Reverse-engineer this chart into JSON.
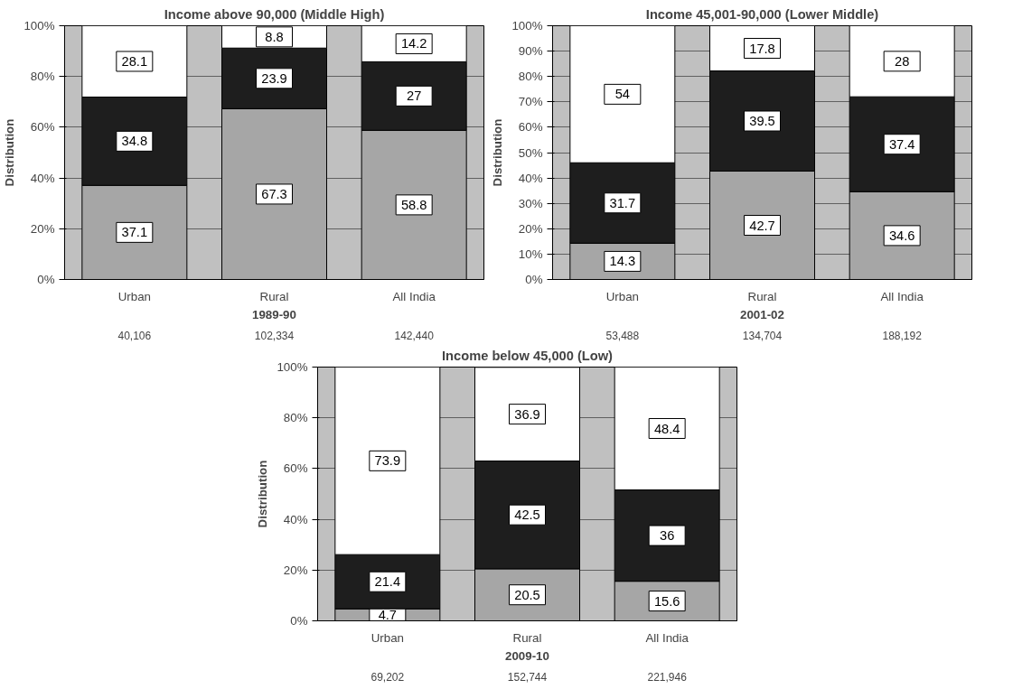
{
  "chart_data": [
    {
      "type": "bar",
      "stacked": true,
      "title": "Income above 90,000 (Middle High)",
      "ylabel": "Distribution",
      "xlabel": "1989-90",
      "categories": [
        "Urban",
        "Rural",
        "All India"
      ],
      "series": [
        {
          "color": "#a6a6a6",
          "values": [
            37.1,
            67.3,
            58.8
          ]
        },
        {
          "color": "#1e1e1e",
          "values": [
            34.8,
            23.9,
            27
          ]
        },
        {
          "color": "#ffffff",
          "values": [
            28.1,
            8.8,
            14.2
          ]
        }
      ],
      "ylim": [
        0,
        100
      ],
      "yticks": [
        {
          "value": 0,
          "label": "0%"
        },
        {
          "value": 20,
          "label": "20%"
        },
        {
          "value": 40,
          "label": "40%"
        },
        {
          "value": 60,
          "label": "60%"
        },
        {
          "value": 80,
          "label": "80%"
        },
        {
          "value": 100,
          "label": "100%"
        }
      ],
      "grid": "y",
      "data_labels": true,
      "annotations": [
        "40,106",
        "102,334",
        "142,440"
      ]
    },
    {
      "type": "bar",
      "stacked": true,
      "title": "Income 45,001-90,000 (Lower Middle)",
      "ylabel": "Distribution",
      "xlabel": "2001-02",
      "categories": [
        "Urban",
        "Rural",
        "All India"
      ],
      "series": [
        {
          "color": "#a6a6a6",
          "values": [
            14.3,
            42.7,
            34.6
          ]
        },
        {
          "color": "#1e1e1e",
          "values": [
            31.7,
            39.5,
            37.4
          ]
        },
        {
          "color": "#ffffff",
          "values": [
            54,
            17.8,
            28
          ]
        }
      ],
      "ylim": [
        0,
        100
      ],
      "yticks": [
        {
          "value": 0,
          "label": "0%"
        },
        {
          "value": 10,
          "label": "10%"
        },
        {
          "value": 20,
          "label": "20%"
        },
        {
          "value": 30,
          "label": "30%"
        },
        {
          "value": 40,
          "label": "40%"
        },
        {
          "value": 50,
          "label": "50%"
        },
        {
          "value": 60,
          "label": "60%"
        },
        {
          "value": 70,
          "label": "70%"
        },
        {
          "value": 80,
          "label": "80%"
        },
        {
          "value": 90,
          "label": "90%"
        },
        {
          "value": 100,
          "label": "100%"
        }
      ],
      "grid": "y",
      "data_labels": true,
      "annotations": [
        "53,488",
        "134,704",
        "188,192"
      ]
    },
    {
      "type": "bar",
      "stacked": true,
      "title": "Income below 45,000 (Low)",
      "ylabel": "Distribution",
      "xlabel": "2009-10",
      "categories": [
        "Urban",
        "Rural",
        "All India"
      ],
      "series": [
        {
          "color": "#a6a6a6",
          "values": [
            4.7,
            20.5,
            15.6
          ]
        },
        {
          "color": "#1e1e1e",
          "values": [
            21.4,
            42.5,
            36
          ]
        },
        {
          "color": "#ffffff",
          "values": [
            73.9,
            36.9,
            48.4
          ]
        }
      ],
      "ylim": [
        0,
        100
      ],
      "yticks": [
        {
          "value": 0,
          "label": "0%"
        },
        {
          "value": 20,
          "label": "20%"
        },
        {
          "value": 40,
          "label": "40%"
        },
        {
          "value": 60,
          "label": "60%"
        },
        {
          "value": 80,
          "label": "80%"
        },
        {
          "value": 100,
          "label": "100%"
        }
      ],
      "grid": "y",
      "data_labels": true,
      "annotations": [
        "69,202",
        "152,744",
        "221,946"
      ]
    }
  ]
}
